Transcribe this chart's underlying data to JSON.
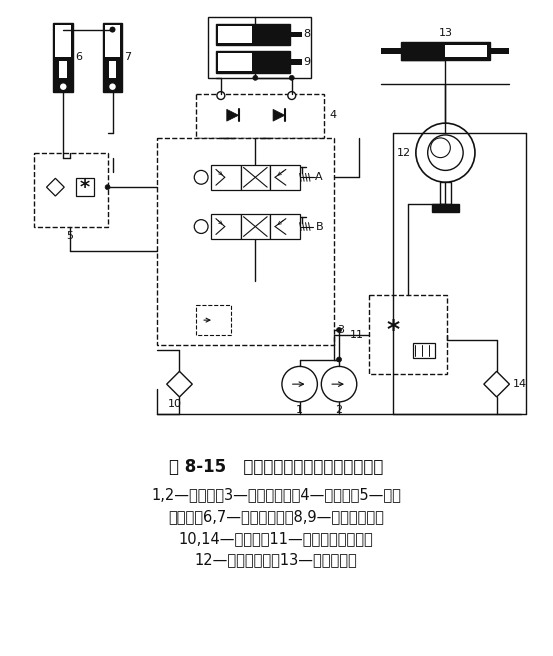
{
  "title": "图 8-15   叉车工作和转向液压系统原理图",
  "caption_lines": [
    "1,2—液压泵；3—多路换向阀；4—液压锁；5—单向",
    "调速阀；6,7—起升液压缸；8,9—倾斜液压缸；",
    "10,14—过滤器；11—转向控制流量阀；",
    "12—转向控制器；13—转向液压缸"
  ],
  "line_color": "#111111",
  "title_fontsize": 12,
  "caption_fontsize": 10.5
}
